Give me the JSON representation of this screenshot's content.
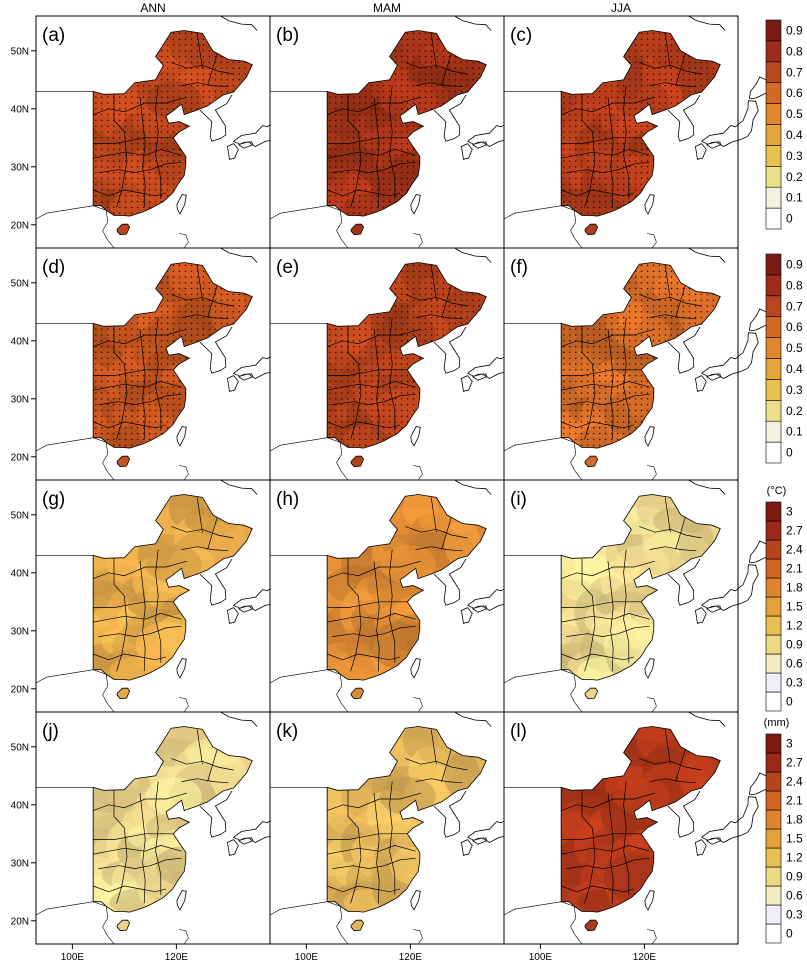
{
  "columns": [
    "ANN",
    "MAM",
    "JJA"
  ],
  "panel_labels": [
    "(a)",
    "(b)",
    "(c)",
    "(d)",
    "(e)",
    "(f)",
    "(g)",
    "(h)",
    "(i)",
    "(j)",
    "(k)",
    "(l)"
  ],
  "lat_ticks": [
    "50N",
    "40N",
    "30N",
    "20N"
  ],
  "lon_ticks": [
    "100E",
    "120E"
  ],
  "colorbars": [
    {
      "unit": "",
      "ticks": [
        "0",
        "0.1",
        "0.2",
        "0.3",
        "0.4",
        "0.5",
        "0.6",
        "0.7",
        "0.8",
        "0.9"
      ],
      "colors": [
        "#ffffff",
        "#f2f0e0",
        "#ecdf8a",
        "#e8c04e",
        "#e6a53a",
        "#e0872c",
        "#d16a24",
        "#b8461d",
        "#9e2c19",
        "#7a1c13"
      ]
    },
    {
      "unit": "",
      "ticks": [
        "0",
        "0.1",
        "0.2",
        "0.3",
        "0.4",
        "0.5",
        "0.6",
        "0.7",
        "0.8",
        "0.9"
      ],
      "colors": [
        "#ffffff",
        "#f2f0e0",
        "#ecdf8a",
        "#e8c04e",
        "#e6a53a",
        "#e0872c",
        "#d16a24",
        "#b8461d",
        "#9e2c19",
        "#7a1c13"
      ]
    },
    {
      "unit": "(°C)",
      "ticks": [
        "0",
        "0.3",
        "0.6",
        "0.9",
        "1.2",
        "1.5",
        "1.8",
        "2.1",
        "2.4",
        "2.7",
        "3"
      ],
      "colors": [
        "#ffffff",
        "#eeeef8",
        "#f3ecc2",
        "#ecd982",
        "#e8bf55",
        "#e4a23c",
        "#df8530",
        "#d06424",
        "#b8441c",
        "#9a2a16",
        "#7a1a10"
      ]
    },
    {
      "unit": "(mm)",
      "ticks": [
        "0",
        "0.3",
        "0.6",
        "0.9",
        "1.2",
        "1.5",
        "1.8",
        "2.1",
        "2.4",
        "2.7",
        "3"
      ],
      "colors": [
        "#ffffff",
        "#eeeef8",
        "#f3ecc2",
        "#ecd982",
        "#e8bf55",
        "#e4a23c",
        "#df8530",
        "#d06424",
        "#b8441c",
        "#9a2a16",
        "#7a1a10"
      ]
    }
  ],
  "panel_fill": [
    [
      "#b8461d",
      "#a33419",
      "#b03c1b"
    ],
    [
      "#c25420",
      "#b2421c",
      "#cf6a28"
    ],
    [
      "#e3a84a",
      "#dc8a35",
      "#ecd58c"
    ],
    [
      "#ebd28a",
      "#e3b45a",
      "#b2381a"
    ]
  ],
  "stippled_rows": [
    0,
    1
  ]
}
